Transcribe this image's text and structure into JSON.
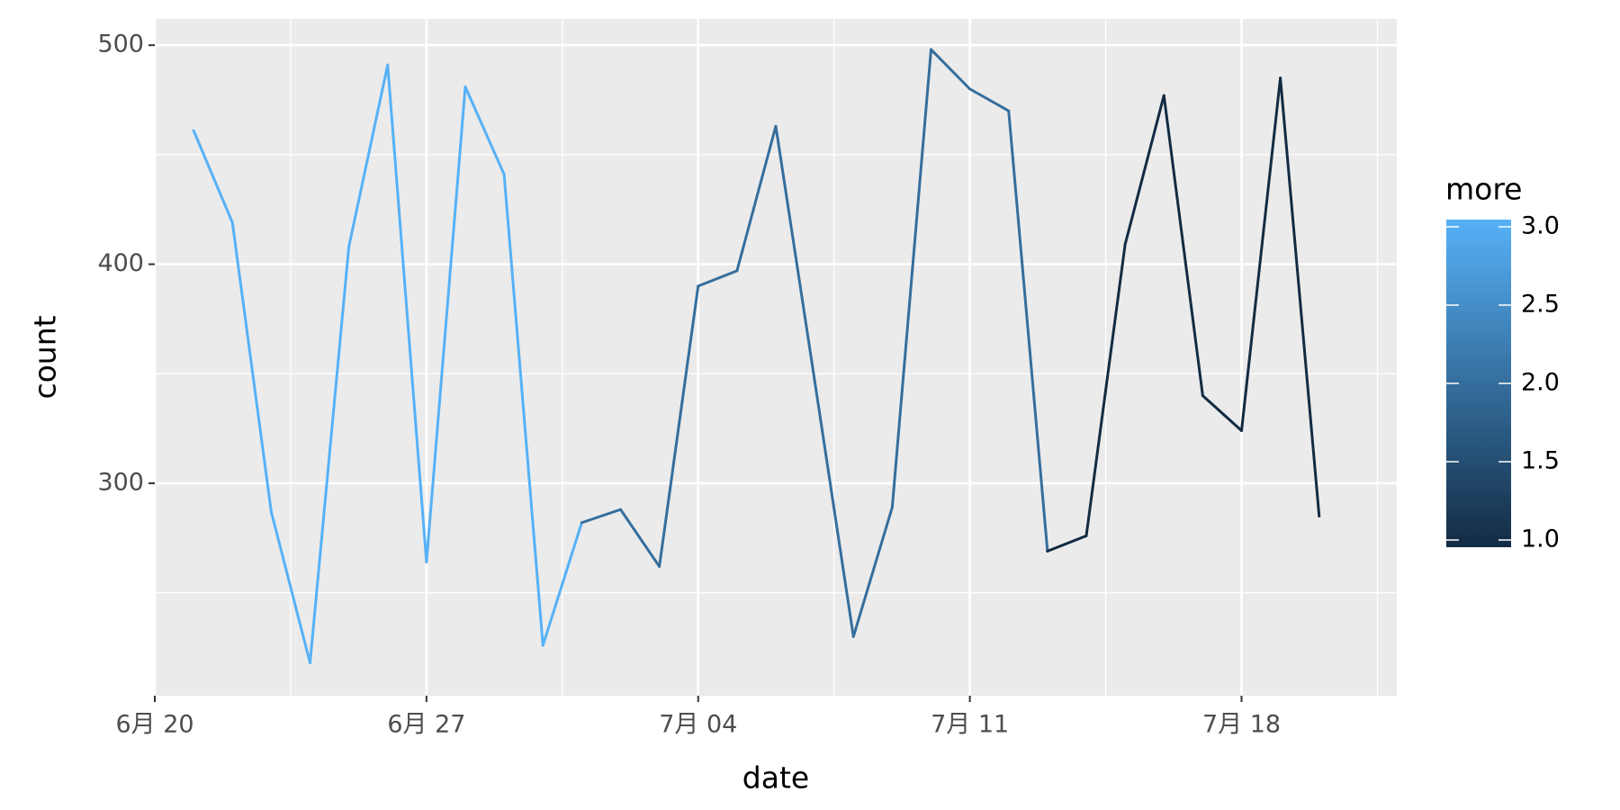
{
  "chart_data": {
    "type": "line",
    "x_label": "date",
    "y_label": "count",
    "x": [
      "06-21",
      "06-22",
      "06-23",
      "06-24",
      "06-25",
      "06-26",
      "06-27",
      "06-28",
      "06-29",
      "06-30",
      "07-01",
      "07-02",
      "07-03",
      "07-04",
      "07-05",
      "07-06",
      "07-07",
      "07-08",
      "07-09",
      "07-10",
      "07-11",
      "07-12",
      "07-13",
      "07-14",
      "07-15",
      "07-16",
      "07-17",
      "07-18",
      "07-19",
      "07-20"
    ],
    "values": [
      461,
      419,
      287,
      218,
      408,
      491,
      264,
      481,
      441,
      226,
      282,
      288,
      262,
      390,
      397,
      463,
      347,
      230,
      289,
      498,
      480,
      470,
      269,
      276,
      409,
      477,
      340,
      324,
      485,
      285
    ],
    "more": [
      3,
      3,
      3,
      3,
      3,
      3,
      3,
      3,
      3,
      3,
      2,
      2,
      2,
      2,
      2,
      2,
      2,
      2,
      2,
      2,
      2,
      2,
      1,
      1,
      1,
      1,
      1,
      1,
      1,
      1
    ],
    "xlim": [
      "06-20",
      "07-22"
    ],
    "xticks": [
      {
        "value": "06-20",
        "label": "6月 20"
      },
      {
        "value": "06-27",
        "label": "6月 27"
      },
      {
        "value": "07-04",
        "label": "7月 04"
      },
      {
        "value": "07-11",
        "label": "7月 11"
      },
      {
        "value": "07-18",
        "label": "7月 18"
      }
    ],
    "ylim": [
      203,
      512
    ],
    "yticks": [
      300,
      400,
      500
    ],
    "grid": true,
    "legend": {
      "title": "more",
      "lim": [
        1,
        3
      ],
      "low_color": "#132B43",
      "high_color": "#56B1F7",
      "ticks": [
        {
          "value": 1,
          "label": "1.0"
        },
        {
          "value": 1.5,
          "label": "1.5"
        },
        {
          "value": 2,
          "label": "2.0"
        },
        {
          "value": 2.5,
          "label": "2.5"
        },
        {
          "value": 3,
          "label": "3.0"
        }
      ]
    }
  }
}
